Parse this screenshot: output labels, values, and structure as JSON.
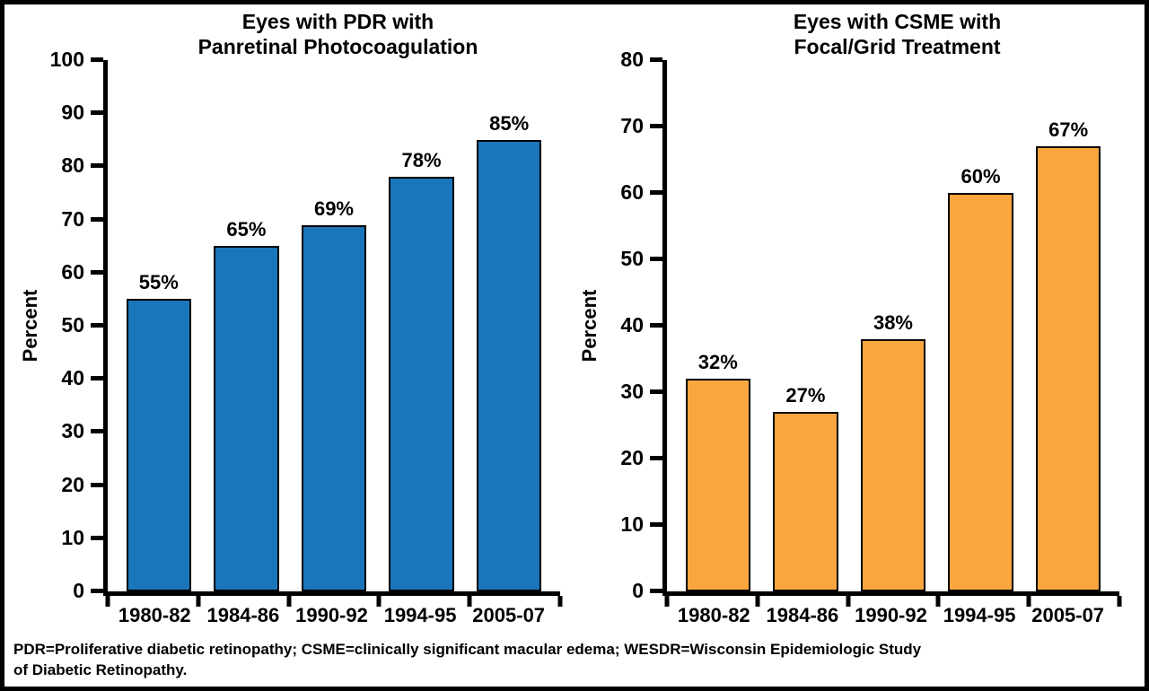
{
  "figure": {
    "footer_line1": "PDR=Proliferative diabetic retinopathy; CSME=clinically significant macular edema; WESDR=Wisconsin Epidemiologic Study",
    "footer_line2": "of Diabetic Retinopathy.",
    "background_color": "#ffffff",
    "border_color": "#000000"
  },
  "chart_data": [
    {
      "type": "bar",
      "title": "Eyes with PDR with Panretinal Photocoagulation",
      "title_line1": "Eyes with PDR with",
      "title_line2": "Panretinal Photocoagulation",
      "xlabel": "",
      "ylabel": "Percent",
      "categories": [
        "1980-82",
        "1984-86",
        "1990-92",
        "1994-95",
        "2005-07"
      ],
      "values": [
        55,
        65,
        69,
        78,
        85
      ],
      "value_labels": [
        "55%",
        "65%",
        "69%",
        "78%",
        "85%"
      ],
      "ylim": [
        0,
        100
      ],
      "ytick_step": 10,
      "bar_color": "#1B75BB",
      "bar_border_color": "#000000",
      "grid": false,
      "legend": "none"
    },
    {
      "type": "bar",
      "title": "Eyes with CSME with Focal/Grid Treatment",
      "title_line1": "Eyes with CSME with",
      "title_line2": "Focal/Grid Treatment",
      "xlabel": "",
      "ylabel": "Percent",
      "categories": [
        "1980-82",
        "1984-86",
        "1990-92",
        "1994-95",
        "2005-07"
      ],
      "values": [
        32,
        27,
        38,
        60,
        67
      ],
      "value_labels": [
        "32%",
        "27%",
        "38%",
        "60%",
        "67%"
      ],
      "ylim": [
        0,
        80
      ],
      "ytick_step": 10,
      "bar_color": "#FAA63E",
      "bar_border_color": "#000000",
      "grid": false,
      "legend": "none"
    }
  ]
}
